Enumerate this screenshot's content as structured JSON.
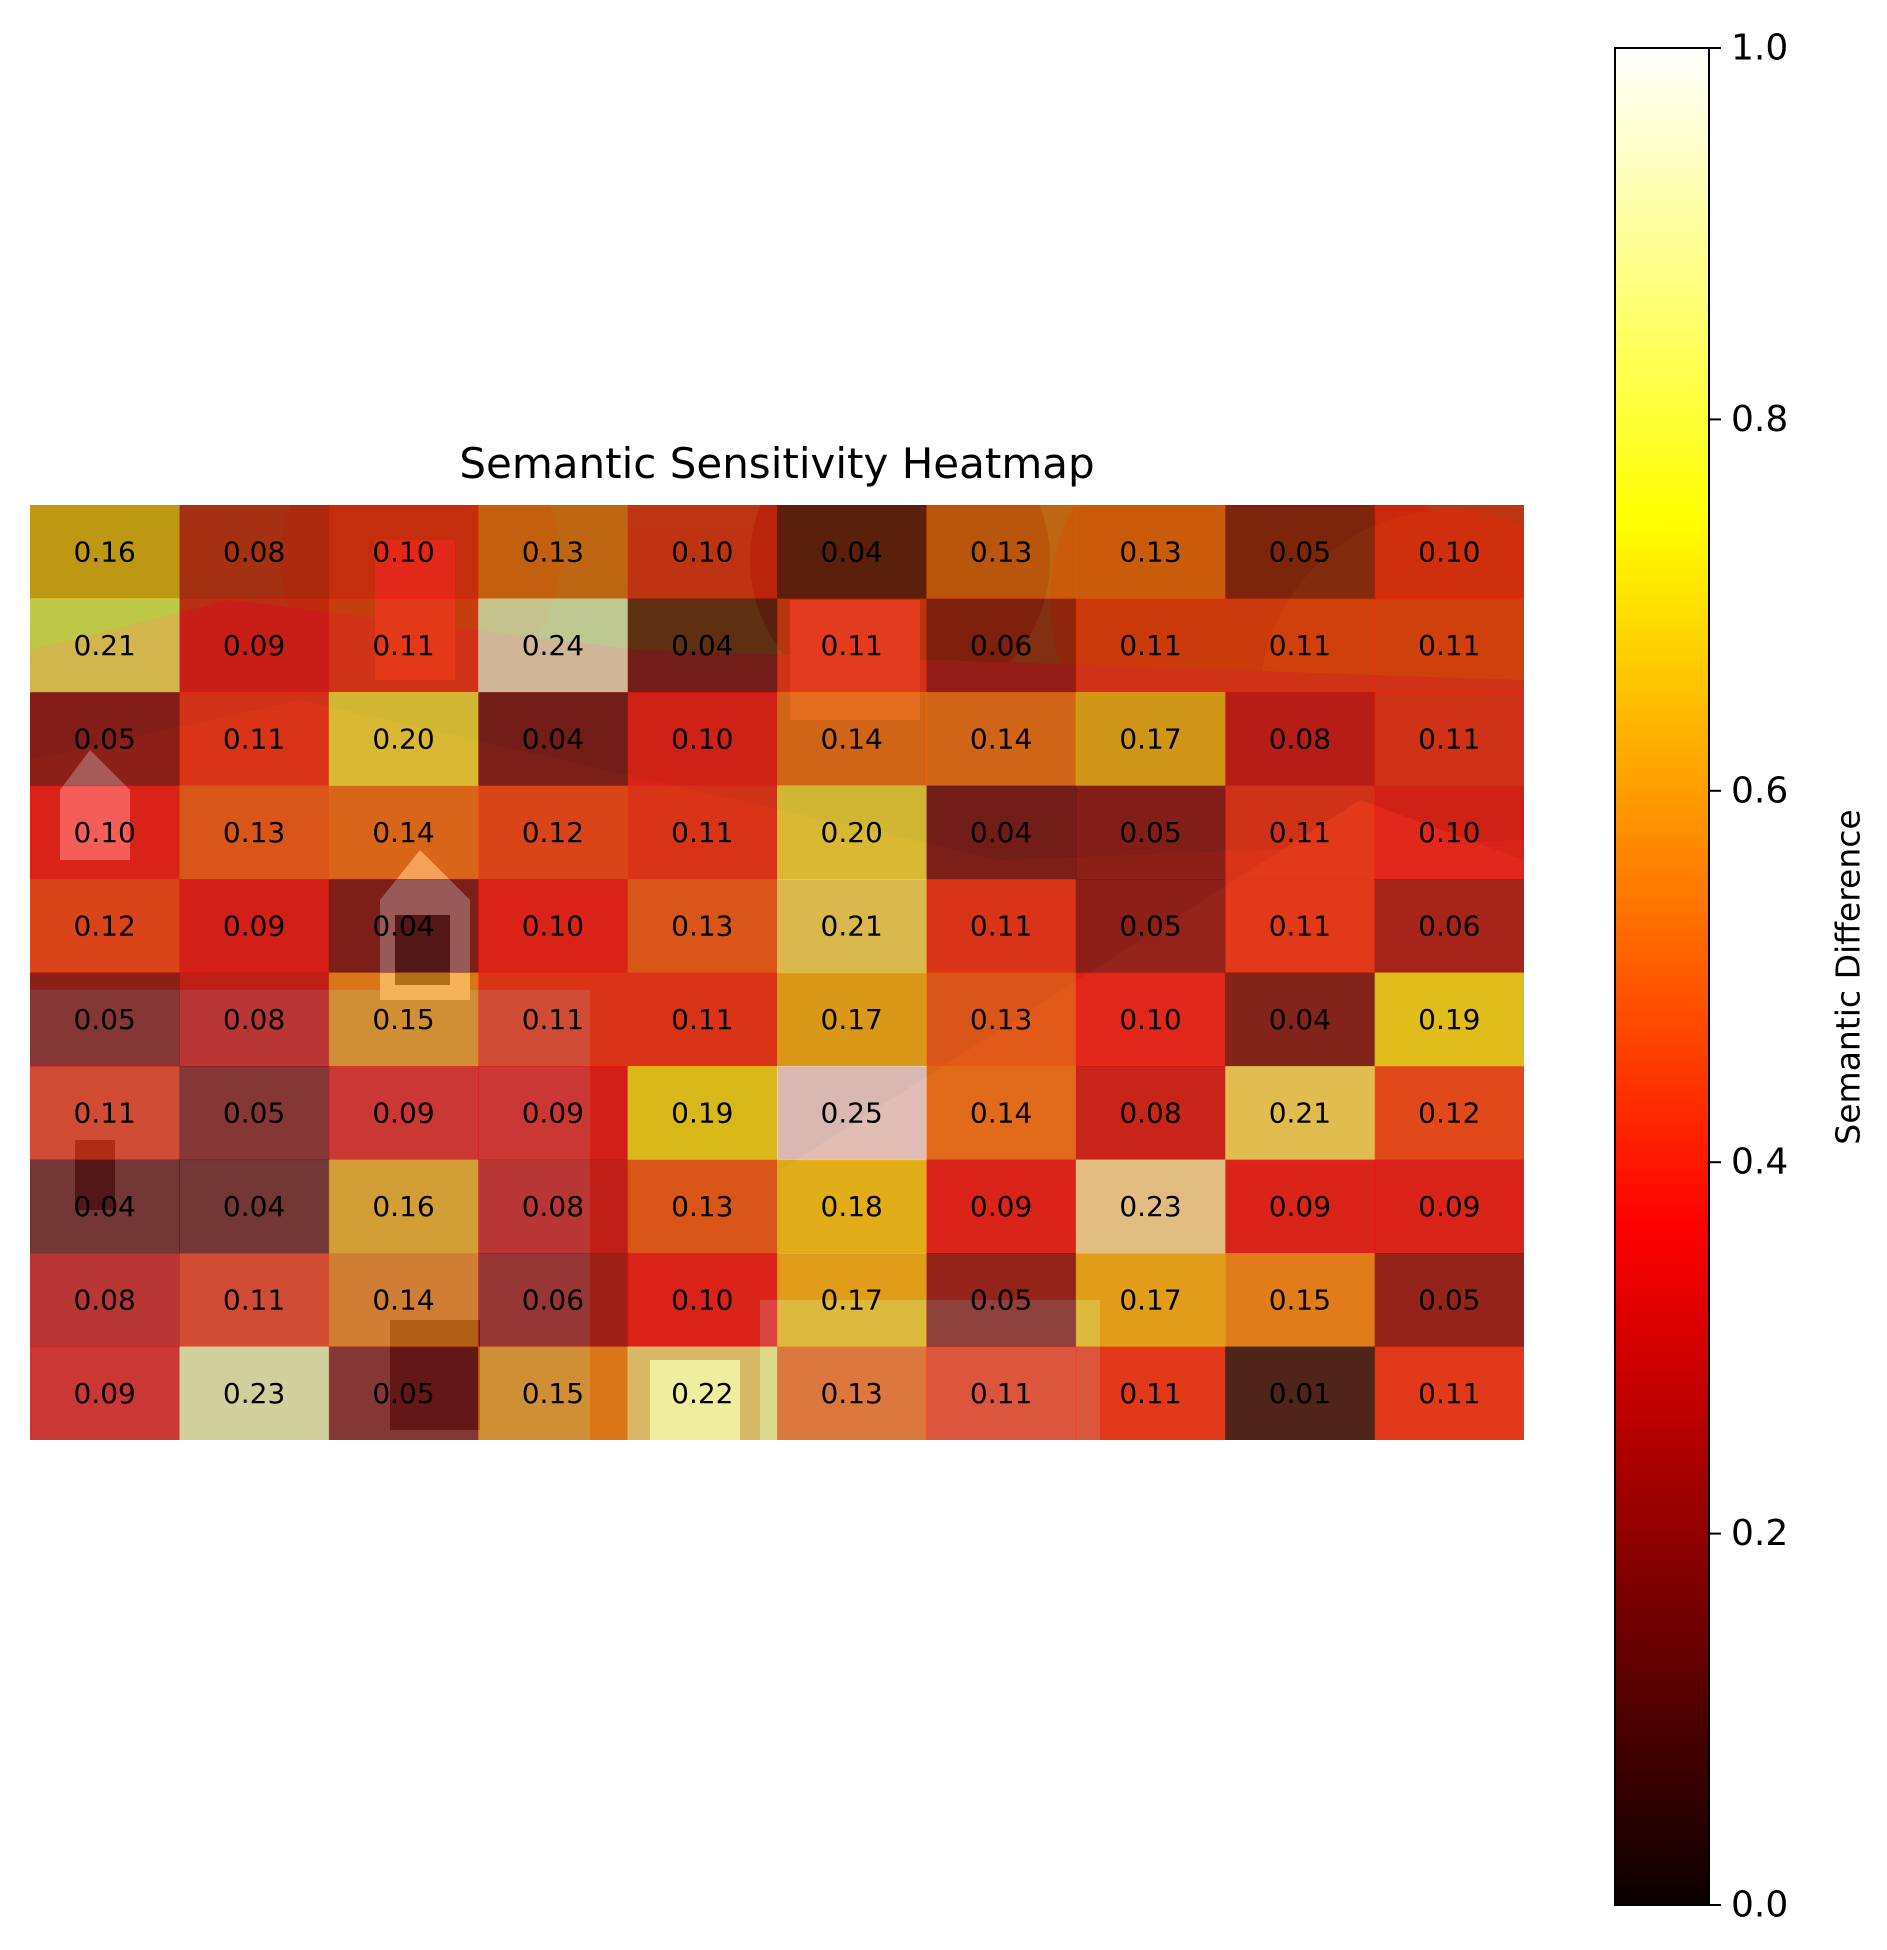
{
  "chart_data": {
    "type": "heatmap",
    "title": "Semantic Sensitivity Heatmap",
    "background": "photo of house roof with chimneys and trees, overlaid by heatmap",
    "colormap": "hot",
    "vmin": 0.0,
    "vmax": 1.0,
    "rows": 10,
    "cols": 10,
    "values": [
      [
        0.16,
        0.08,
        0.1,
        0.13,
        0.1,
        0.04,
        0.13,
        0.13,
        0.05,
        0.1
      ],
      [
        0.21,
        0.09,
        0.11,
        0.24,
        0.04,
        0.11,
        0.06,
        0.11,
        0.11,
        0.11
      ],
      [
        0.05,
        0.11,
        0.2,
        0.04,
        0.1,
        0.14,
        0.14,
        0.17,
        0.08,
        0.11
      ],
      [
        0.1,
        0.13,
        0.14,
        0.12,
        0.11,
        0.2,
        0.04,
        0.05,
        0.11,
        0.1
      ],
      [
        0.12,
        0.09,
        0.04,
        0.1,
        0.13,
        0.21,
        0.11,
        0.05,
        0.11,
        0.06
      ],
      [
        0.05,
        0.08,
        0.15,
        0.11,
        0.11,
        0.17,
        0.13,
        0.1,
        0.04,
        0.19
      ],
      [
        0.11,
        0.05,
        0.09,
        0.09,
        0.19,
        0.25,
        0.14,
        0.08,
        0.21,
        0.12
      ],
      [
        0.04,
        0.04,
        0.16,
        0.08,
        0.13,
        0.18,
        0.09,
        0.23,
        0.09,
        0.09
      ],
      [
        0.08,
        0.11,
        0.14,
        0.06,
        0.1,
        0.17,
        0.05,
        0.17,
        0.15,
        0.05
      ],
      [
        0.09,
        0.23,
        0.05,
        0.15,
        0.22,
        0.13,
        0.11,
        0.11,
        0.01,
        0.11
      ]
    ],
    "labels": [
      [
        "0.16",
        "0.08",
        "0.10",
        "0.13",
        "0.10",
        "0.04",
        "0.13",
        "0.13",
        "0.05",
        "0.10"
      ],
      [
        "0.21",
        "0.09",
        "0.11",
        "0.24",
        "0.04",
        "0.11",
        "0.06",
        "0.11",
        "0.11",
        "0.11"
      ],
      [
        "0.05",
        "0.11",
        "0.20",
        "0.04",
        "0.10",
        "0.14",
        "0.14",
        "0.17",
        "0.08",
        "0.11"
      ],
      [
        "0.10",
        "0.13",
        "0.14",
        "0.12",
        "0.11",
        "0.20",
        "0.04",
        "0.05",
        "0.11",
        "0.10"
      ],
      [
        "0.12",
        "0.09",
        "0.04",
        "0.10",
        "0.13",
        "0.21",
        "0.11",
        "0.05",
        "0.11",
        "0.06"
      ],
      [
        "0.05",
        "0.08",
        "0.15",
        "0.11",
        "0.11",
        "0.17",
        "0.13",
        "0.10",
        "0.04",
        "0.19"
      ],
      [
        "0.11",
        "0.05",
        "0.09",
        "0.09",
        "0.19",
        "0.25",
        "0.14",
        "0.08",
        "0.21",
        "0.12"
      ],
      [
        "0.04",
        "0.04",
        "0.16",
        "0.08",
        "0.13",
        "0.18",
        "0.09",
        "0.23",
        "0.09",
        "0.09"
      ],
      [
        "0.08",
        "0.11",
        "0.14",
        "0.06",
        "0.10",
        "0.17",
        "0.05",
        "0.17",
        "0.15",
        "0.05"
      ],
      [
        "0.09",
        "0.23",
        "0.05",
        "0.15",
        "0.22",
        "0.13",
        "0.11",
        "0.11",
        "0.01",
        "0.11"
      ]
    ],
    "colorbar": {
      "label": "Semantic Difference",
      "ticks": [
        0.0,
        0.2,
        0.4,
        0.6,
        0.8,
        1.0
      ],
      "tick_labels": [
        "0.0",
        "0.2",
        "0.4",
        "0.6",
        "0.8",
        "1.0"
      ],
      "placement": "right"
    }
  }
}
